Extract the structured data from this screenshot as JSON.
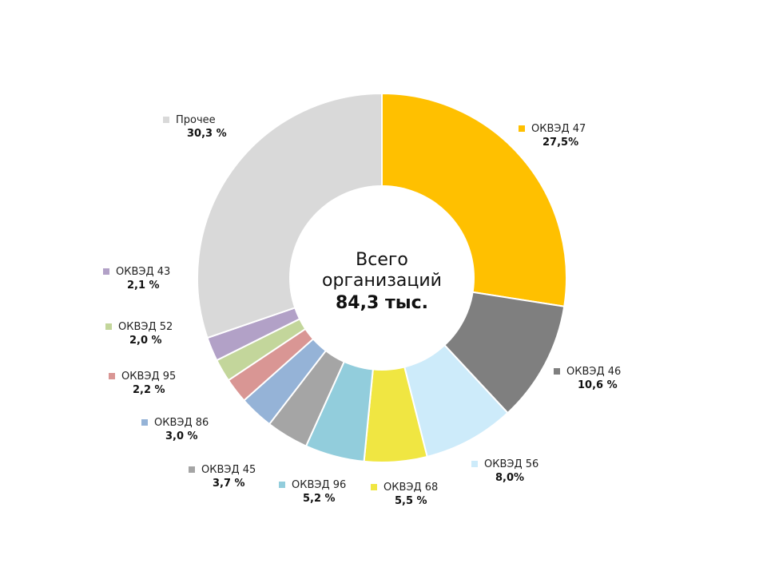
{
  "chart_data": {
    "type": "pie",
    "center": {
      "line1": "Всего",
      "line2": "организаций",
      "total": "84,3 тыс."
    },
    "slices": [
      {
        "name": "ОКВЭД 47",
        "value": 27.5,
        "label": "27,5%",
        "color": "#FFC000"
      },
      {
        "name": "ОКВЭД 46",
        "value": 10.6,
        "label": "10,6 %",
        "color": "#7F7F7F"
      },
      {
        "name": "ОКВЭД 56",
        "value": 8.0,
        "label": "8,0%",
        "color": "#CDEBFA"
      },
      {
        "name": "ОКВЭД 68",
        "value": 5.5,
        "label": "5,5 %",
        "color": "#F0E642"
      },
      {
        "name": "ОКВЭД 96",
        "value": 5.2,
        "label": "5,2 %",
        "color": "#92CDDC"
      },
      {
        "name": "ОКВЭД 45",
        "value": 3.7,
        "label": "3,7 %",
        "color": "#A5A5A5"
      },
      {
        "name": "ОКВЭД 86",
        "value": 3.0,
        "label": "3,0 %",
        "color": "#95B3D7"
      },
      {
        "name": "ОКВЭД 95",
        "value": 2.2,
        "label": "2,2 %",
        "color": "#D99694"
      },
      {
        "name": "ОКВЭД 52",
        "value": 2.0,
        "label": "2,0 %",
        "color": "#C3D69B"
      },
      {
        "name": "ОКВЭД 43",
        "value": 2.1,
        "label": "2,1 %",
        "color": "#B2A1C7"
      },
      {
        "name": "Прочее",
        "value": 30.3,
        "label": "30,3 %",
        "color": "#D9D9D9"
      }
    ]
  }
}
